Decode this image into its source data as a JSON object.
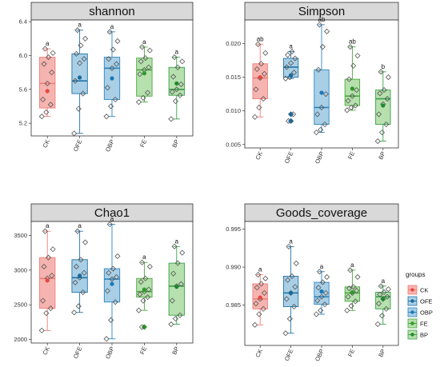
{
  "chart_data": [
    {
      "type": "box",
      "title": "shannon",
      "categories": [
        "CK",
        "OFE",
        "OBP",
        "FE",
        "BP"
      ],
      "ylim": [
        5.05,
        6.42
      ],
      "yticks": [
        5.2,
        5.6,
        6.0,
        6.4
      ],
      "ytick_labels": [
        "5.2",
        "5.6",
        "6.0",
        "6.4"
      ],
      "boxes": [
        {
          "min": 5.28,
          "q1": 5.38,
          "median": 5.67,
          "q3": 5.98,
          "max": 6.08,
          "mean": 5.58,
          "sig": "a",
          "points": [
            5.28,
            5.33,
            5.42,
            5.48,
            5.67,
            5.8,
            5.9,
            5.98,
            6.03,
            6.08
          ],
          "outliers": []
        },
        {
          "min": 5.08,
          "q1": 5.55,
          "median": 5.7,
          "q3": 6.02,
          "max": 6.3,
          "mean": 5.74,
          "sig": "a",
          "points": [
            5.08,
            5.37,
            5.55,
            5.7,
            5.91,
            5.96,
            6.02,
            6.12,
            6.2,
            6.3
          ],
          "outliers": []
        },
        {
          "min": 5.28,
          "q1": 5.48,
          "median": 5.85,
          "q3": 5.98,
          "max": 6.28,
          "mean": 5.73,
          "sig": "a",
          "points": [
            5.28,
            5.4,
            5.48,
            5.62,
            5.85,
            5.9,
            5.96,
            6.07,
            6.17,
            6.28
          ],
          "outliers": []
        },
        {
          "min": 5.45,
          "q1": 5.52,
          "median": 5.83,
          "q3": 5.97,
          "max": 6.1,
          "mean": 5.79,
          "sig": "a",
          "points": [
            5.45,
            5.5,
            5.56,
            5.78,
            5.83,
            5.86,
            5.93,
            5.97,
            6.06,
            6.1
          ],
          "outliers": []
        },
        {
          "min": 5.25,
          "q1": 5.53,
          "median": 5.6,
          "q3": 5.86,
          "max": 5.98,
          "mean": 5.67,
          "sig": "a",
          "points": [
            5.25,
            5.46,
            5.53,
            5.57,
            5.6,
            5.66,
            5.75,
            5.86,
            5.93,
            5.98
          ],
          "outliers": []
        }
      ]
    },
    {
      "type": "box",
      "title": "Simpson",
      "categories": [
        "CK",
        "OFE",
        "OBP",
        "FE",
        "BP"
      ],
      "ylim": [
        0.0045,
        0.0235
      ],
      "yticks": [
        0.005,
        0.01,
        0.015,
        0.02
      ],
      "ytick_labels": [
        "0.005",
        "0.010",
        "0.015",
        "0.020"
      ],
      "boxes": [
        {
          "min": 0.0091,
          "q1": 0.0118,
          "median": 0.0149,
          "q3": 0.017,
          "max": 0.0199,
          "mean": 0.015,
          "sig": "ab",
          "points": [
            0.0091,
            0.0105,
            0.0118,
            0.0132,
            0.0149,
            0.0155,
            0.0162,
            0.017,
            0.0186,
            0.0199
          ],
          "outliers": []
        },
        {
          "min": 0.0148,
          "q1": 0.015,
          "median": 0.0165,
          "q3": 0.0178,
          "max": 0.0188,
          "mean": 0.0153,
          "sig": "a",
          "points": [
            0.0148,
            0.015,
            0.0157,
            0.0165,
            0.0171,
            0.0178,
            0.0183,
            0.0188
          ],
          "outliers": [
            0.0085,
            0.0095
          ]
        },
        {
          "min": 0.0068,
          "q1": 0.008,
          "median": 0.0105,
          "q3": 0.0161,
          "max": 0.0228,
          "mean": 0.0127,
          "sig": "ab",
          "points": [
            0.0068,
            0.0072,
            0.008,
            0.0095,
            0.0105,
            0.0125,
            0.0161,
            0.0195,
            0.0218,
            0.0228
          ],
          "outliers": []
        },
        {
          "min": 0.0101,
          "q1": 0.0108,
          "median": 0.0122,
          "q3": 0.0147,
          "max": 0.0195,
          "mean": 0.0133,
          "sig": "ab",
          "points": [
            0.0101,
            0.0105,
            0.0108,
            0.0115,
            0.0122,
            0.0131,
            0.0147,
            0.0167,
            0.0182,
            0.0195
          ],
          "outliers": []
        },
        {
          "min": 0.0055,
          "q1": 0.008,
          "median": 0.0118,
          "q3": 0.0131,
          "max": 0.0158,
          "mean": 0.0108,
          "sig": "b",
          "points": [
            0.0055,
            0.0068,
            0.008,
            0.0095,
            0.011,
            0.0118,
            0.0126,
            0.0131,
            0.015,
            0.0158
          ],
          "outliers": []
        }
      ]
    },
    {
      "type": "box",
      "title": "Chao1",
      "categories": [
        "CK",
        "OFE",
        "OBP",
        "FE",
        "BP"
      ],
      "ylim": [
        1950,
        3700
      ],
      "yticks": [
        2000,
        2500,
        3000,
        3500
      ],
      "ytick_labels": [
        "2000",
        "2500",
        "3000",
        "3500"
      ],
      "boxes": [
        {
          "min": 2130,
          "q1": 2450,
          "median": 2880,
          "q3": 3180,
          "max": 3560,
          "mean": 2850,
          "sig": "a",
          "points": [
            2130,
            2380,
            2450,
            2560,
            2880,
            2920,
            3050,
            3180,
            3300,
            3560
          ],
          "outliers": []
        },
        {
          "min": 2390,
          "q1": 2680,
          "median": 2890,
          "q3": 3150,
          "max": 3560,
          "mean": 2920,
          "sig": "a",
          "points": [
            2390,
            2480,
            2680,
            2820,
            2890,
            2960,
            3050,
            3150,
            3400,
            3560
          ],
          "outliers": []
        },
        {
          "min": 2010,
          "q1": 2540,
          "median": 2870,
          "q3": 3020,
          "max": 3660,
          "mean": 2800,
          "sig": "a",
          "points": [
            2010,
            2280,
            2540,
            2700,
            2870,
            2900,
            2960,
            3020,
            3200,
            3660
          ],
          "outliers": []
        },
        {
          "min": 2420,
          "q1": 2610,
          "median": 2690,
          "q3": 2880,
          "max": 3110,
          "mean": 2720,
          "sig": "a",
          "points": [
            2420,
            2560,
            2610,
            2650,
            2690,
            2720,
            2830,
            2880,
            3050,
            3110
          ],
          "outliers": [
            2180
          ]
        },
        {
          "min": 2220,
          "q1": 2350,
          "median": 2770,
          "q3": 3100,
          "max": 3340,
          "mean": 2760,
          "sig": "a",
          "points": [
            2220,
            2300,
            2350,
            2560,
            2770,
            2800,
            2950,
            3100,
            3250,
            3340
          ],
          "outliers": []
        }
      ]
    },
    {
      "type": "box",
      "title": "Goods_coverage",
      "categories": [
        "CK",
        "OFE",
        "OBP",
        "FE",
        "BP"
      ],
      "ylim": [
        0.9797,
        0.996
      ],
      "yticks": [
        0.985,
        0.99,
        0.995
      ],
      "ytick_labels": [
        "0.985",
        "0.990",
        "0.995"
      ],
      "boxes": [
        {
          "min": 0.9824,
          "q1": 0.9845,
          "median": 0.9858,
          "q3": 0.9878,
          "max": 0.989,
          "mean": 0.986,
          "sig": "a",
          "points": [
            0.9824,
            0.9838,
            0.9845,
            0.9852,
            0.9858,
            0.9866,
            0.9873,
            0.9878,
            0.9885,
            0.989
          ],
          "outliers": []
        },
        {
          "min": 0.9813,
          "q1": 0.9848,
          "median": 0.9866,
          "q3": 0.9888,
          "max": 0.9927,
          "mean": 0.9866,
          "sig": "a",
          "points": [
            0.9813,
            0.9832,
            0.9848,
            0.9858,
            0.9866,
            0.9874,
            0.9883,
            0.9888,
            0.9905,
            0.9927
          ],
          "outliers": []
        },
        {
          "min": 0.9838,
          "q1": 0.9851,
          "median": 0.9861,
          "q3": 0.988,
          "max": 0.9894,
          "mean": 0.9868,
          "sig": "a",
          "points": [
            0.9838,
            0.9843,
            0.9851,
            0.9856,
            0.9861,
            0.9866,
            0.9873,
            0.988,
            0.9887,
            0.9894
          ],
          "outliers": []
        },
        {
          "min": 0.9843,
          "q1": 0.9855,
          "median": 0.9866,
          "q3": 0.9874,
          "max": 0.9896,
          "mean": 0.9867,
          "sig": "a",
          "points": [
            0.9843,
            0.9849,
            0.9855,
            0.9861,
            0.9866,
            0.9869,
            0.9872,
            0.9874,
            0.9887,
            0.9896
          ],
          "outliers": []
        },
        {
          "min": 0.9825,
          "q1": 0.9845,
          "median": 0.9861,
          "q3": 0.9867,
          "max": 0.9875,
          "mean": 0.9858,
          "sig": "a",
          "points": [
            0.9825,
            0.9836,
            0.9845,
            0.9852,
            0.9858,
            0.9861,
            0.9864,
            0.9867,
            0.9871,
            0.9875
          ],
          "outliers": []
        }
      ]
    }
  ],
  "legend": {
    "title": "groups",
    "placement": "right",
    "items": [
      "CK",
      "OFE",
      "OBP",
      "FE",
      "BP"
    ]
  },
  "colors": {
    "CK": {
      "fill": "#f6b4b0",
      "line": "#f07d76",
      "point": "#e8473f"
    },
    "OFE": {
      "fill": "#a9cfe6",
      "line": "#1f74a8",
      "point": "#1a6a9c"
    },
    "OBP": {
      "fill": "#a9cfe6",
      "line": "#2e86c1",
      "point": "#1a78b8"
    },
    "FE": {
      "fill": "#b6e0ad",
      "line": "#4ba63e",
      "point": "#2d9a2a"
    },
    "BP": {
      "fill": "#b6e0ad",
      "line": "#39a14a",
      "point": "#1c8a2e"
    },
    "panel_bg": "#ffffff",
    "strip_bg": "#d9d9d9",
    "border": "#333333"
  }
}
